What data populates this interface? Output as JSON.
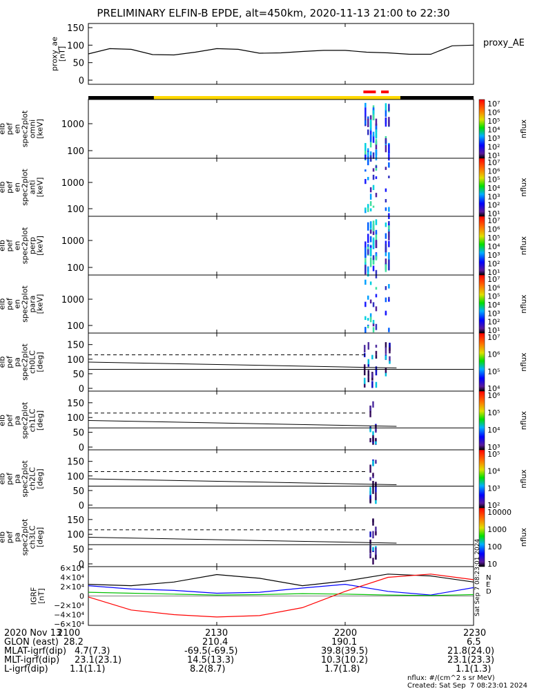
{
  "title": "PRELIMINARY ELFIN-B EPDE, alt=450km, 2020-11-13 21:00 to 22:30",
  "side_stamp": "Sat Sep  7 08:23:01 2024",
  "colors": {
    "sunlight_bar": "#ffd800",
    "shadow_bar": "#000000",
    "science_bar": "#ff0000",
    "igrf_x": "#0000ff",
    "igrf_y": "#00c000",
    "igrf_z": "#ff0000",
    "igrf_total": "#000000"
  },
  "chart_data": [
    {
      "type": "line",
      "panel": "proxy_ae",
      "ylabel": [
        "proxy_ae",
        "[nT]"
      ],
      "legend": "proxy_AE",
      "ylim": [
        0,
        150
      ],
      "yticks": [
        "150",
        "100",
        "50",
        "0"
      ],
      "x": [
        "21:00",
        "21:05",
        "21:10",
        "21:15",
        "21:20",
        "21:25",
        "21:30",
        "21:35",
        "21:40",
        "21:45",
        "21:50",
        "21:55",
        "22:00",
        "22:05",
        "22:10",
        "22:15",
        "22:20",
        "22:25",
        "22:30"
      ],
      "values": [
        75,
        90,
        88,
        73,
        72,
        80,
        90,
        88,
        77,
        78,
        82,
        85,
        85,
        80,
        78,
        74,
        74,
        98,
        100
      ]
    },
    {
      "type": "heatmap",
      "panel": "spectrogram-omni",
      "ylabel": [
        "elb",
        "pef",
        "en",
        "spec2plot",
        "omni",
        "[keV]"
      ],
      "yticks": [
        "1000",
        "100"
      ],
      "color_label": "nflux",
      "color_ticks": [
        "10⁷",
        "10⁶",
        "10⁵",
        "10⁴",
        "10³",
        "10²",
        "10¹"
      ]
    },
    {
      "type": "heatmap",
      "panel": "spectrogram-anti",
      "ylabel": [
        "elb",
        "pef",
        "en",
        "spec2plot",
        "anti",
        "[keV]"
      ],
      "yticks": [
        "1000",
        "100"
      ],
      "color_label": "nflux",
      "color_ticks": [
        "10⁷",
        "10⁶",
        "10⁵",
        "10⁴",
        "10³",
        "10²",
        "10¹"
      ]
    },
    {
      "type": "heatmap",
      "panel": "spectrogram-perp",
      "ylabel": [
        "elb",
        "pef",
        "en",
        "spec2plot",
        "perp",
        "[keV]"
      ],
      "yticks": [
        "1000",
        "100"
      ],
      "color_label": "nflux",
      "color_ticks": [
        "10⁷",
        "10⁶",
        "10⁵",
        "10⁴",
        "10³",
        "10²",
        "10¹"
      ]
    },
    {
      "type": "heatmap",
      "panel": "spectrogram-para",
      "ylabel": [
        "elb",
        "pef",
        "en",
        "spec2plot",
        "para",
        "[keV]"
      ],
      "yticks": [
        "1000",
        "100"
      ],
      "color_label": "nflux",
      "color_ticks": [
        "10⁷",
        "10⁶",
        "10⁵",
        "10⁴",
        "10³",
        "10²",
        "10¹"
      ]
    },
    {
      "type": "heatmap",
      "panel": "pitch-angle-ch0",
      "ylabel": [
        "elb",
        "pef",
        "pa",
        "spec2plot",
        "ch0LC",
        "[deg]"
      ],
      "yticks": [
        "150",
        "100",
        "50",
        "0"
      ],
      "color_label": "nflux",
      "color_ticks": [
        "10⁷",
        "10⁶",
        "10⁵",
        "10⁴"
      ]
    },
    {
      "type": "heatmap",
      "panel": "pitch-angle-ch1",
      "ylabel": [
        "elb",
        "pef",
        "pa",
        "spec2plot",
        "ch1LC",
        "[deg]"
      ],
      "yticks": [
        "150",
        "100",
        "50",
        "0"
      ],
      "color_label": "nflux",
      "color_ticks": [
        "10⁶",
        "10⁵",
        "10⁴",
        "10³"
      ]
    },
    {
      "type": "heatmap",
      "panel": "pitch-angle-ch2",
      "ylabel": [
        "elb",
        "pef",
        "pa",
        "spec2plot",
        "ch2LC",
        "[deg]"
      ],
      "yticks": [
        "150",
        "100",
        "50",
        "0"
      ],
      "color_label": "nflux",
      "color_ticks": [
        "10⁵",
        "10⁴",
        "10³",
        "10²"
      ]
    },
    {
      "type": "heatmap",
      "panel": "pitch-angle-ch3",
      "ylabel": [
        "elb",
        "pef",
        "pa",
        "spec2plot",
        "ch3LC",
        "[deg]"
      ],
      "yticks": [
        "150",
        "100",
        "50",
        "0"
      ],
      "color_label": "nflux",
      "color_ticks": [
        "10000",
        "1000",
        "100",
        "10"
      ]
    },
    {
      "type": "line",
      "panel": "igrf",
      "ylabel": [
        "IGRF",
        "[nT]"
      ],
      "legend": [
        "N",
        "E",
        "D"
      ],
      "ylim": [
        -60000,
        60000
      ],
      "yticks": [
        "6×10⁴",
        "4×10⁴",
        "2×10⁴",
        "0",
        "−2×10⁴",
        "−4×10⁴",
        "−6×10⁴"
      ],
      "x": [
        "21:00",
        "21:10",
        "21:20",
        "21:30",
        "21:40",
        "21:50",
        "22:00",
        "22:10",
        "22:20",
        "22:30"
      ],
      "series": [
        {
          "values": [
            25000,
            22000,
            30000,
            46000,
            38000,
            22000,
            32000,
            47000,
            43000,
            30000
          ]
        },
        {
          "values": [
            22000,
            15000,
            12000,
            6000,
            8000,
            17000,
            25000,
            10000,
            2000,
            18000
          ]
        },
        {
          "values": [
            8000,
            6000,
            4000,
            2000,
            3000,
            5000,
            4000,
            2000,
            1000,
            3000
          ]
        },
        {
          "values": [
            -2000,
            -30000,
            -40000,
            -45000,
            -42000,
            -25000,
            10000,
            40000,
            47000,
            35000
          ]
        }
      ]
    }
  ],
  "footer": {
    "rows": [
      {
        "label": "2020 Nov 13",
        "values": [
          "2100",
          "2130",
          "2200",
          "2230"
        ]
      },
      {
        "label": "GLON (east)",
        "values": [
          "28.2",
          "210.4",
          "190.1",
          "6.5"
        ]
      },
      {
        "label": "MLAT-igrf(dip)",
        "values": [
          "4.7(7.3)",
          "-69.5(-69.5)",
          "39.8(39.5)",
          "21.8(24.0)"
        ]
      },
      {
        "label": "MLT-igrf(dip)",
        "values": [
          "23.1(23.1)",
          "14.5(13.3)",
          "10.3(10.2)",
          "23.1(23.3)"
        ]
      },
      {
        "label": "L-igrf(dip)",
        "values": [
          "1.1(1.1)",
          "8.2(8.7)",
          "1.7(1.8)",
          "1.1(1.3)"
        ]
      }
    ],
    "units_note": "nflux: #/(cm^2 s sr MeV)",
    "created": "Created: Sat Sep  7 08:23:01 2024"
  }
}
